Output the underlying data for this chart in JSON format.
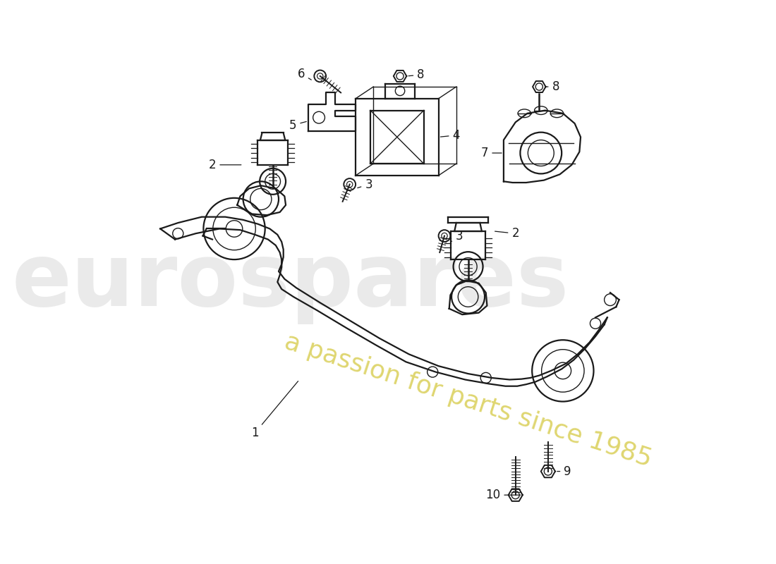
{
  "background_color": "#ffffff",
  "line_color": "#1a1a1a",
  "label_color": "#1a1a1a",
  "watermark_color1": "#cccccc",
  "watermark_color2": "#d4c840",
  "font_size": 12,
  "figsize": [
    11.0,
    8.0
  ],
  "dpi": 100,
  "xlim": [
    0,
    1100
  ],
  "ylim": [
    0,
    800
  ]
}
